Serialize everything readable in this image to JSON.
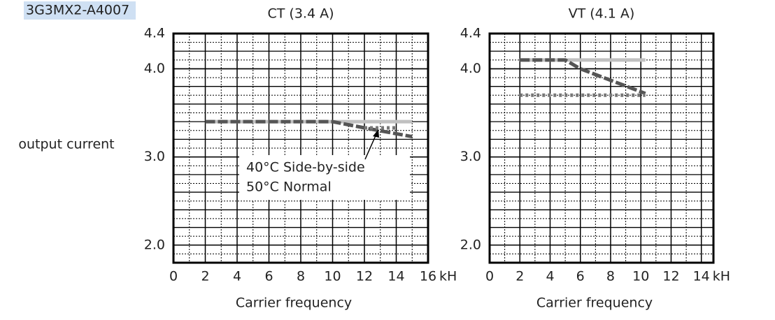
{
  "header": "3G3MX2-A4007",
  "ylabel": "output current",
  "chart_data": [
    {
      "type": "line",
      "title": "CT (3.4 A)",
      "xlabel": "Carrier frequency",
      "x_unit": "kH",
      "xlim": [
        0,
        16
      ],
      "xticks": [
        0,
        2,
        4,
        6,
        8,
        10,
        12,
        14,
        16
      ],
      "ylim": [
        1.8,
        4.4
      ],
      "yticks": [
        {
          "value": 2,
          "label": "2.0"
        },
        {
          "value": 3,
          "label": "3.0"
        },
        {
          "value": 4,
          "label": "4.0"
        },
        4.4
      ],
      "grid": true,
      "series": [
        {
          "color": "#c0c0c0",
          "style": "solid",
          "x": [
            2,
            15
          ],
          "values": [
            3.4,
            3.4
          ]
        },
        {
          "name": "40°C Side-by-side",
          "color": "#555555",
          "style": "dashed",
          "x": [
            2,
            10,
            12,
            15
          ],
          "values": [
            3.4,
            3.4,
            3.33,
            3.23
          ]
        },
        {
          "name": "50°C Normal",
          "color": "#777777",
          "style": "dotted",
          "x": [
            12,
            14
          ],
          "values": [
            3.33,
            3.33
          ]
        }
      ]
    },
    {
      "type": "line",
      "title": "VT (4.1 A)",
      "xlabel": "Carrier frequency",
      "x_unit": "kH",
      "xlim": [
        0,
        14.8
      ],
      "xticks": [
        0,
        2,
        4,
        6,
        8,
        10,
        12,
        14
      ],
      "ylim": [
        1.8,
        4.4
      ],
      "yticks": [
        {
          "value": 2,
          "label": "2.0"
        },
        {
          "value": 3,
          "label": "3.0"
        },
        {
          "value": 4,
          "label": "4.0"
        },
        4.4
      ],
      "grid": true,
      "series": [
        {
          "color": "#c0c0c0",
          "style": "solid",
          "x": [
            2,
            10.3
          ],
          "values": [
            4.1,
            4.1
          ]
        },
        {
          "color": "#555555",
          "style": "dashed",
          "x": [
            2,
            5,
            6,
            10.3
          ],
          "values": [
            4.1,
            4.1,
            4.0,
            3.72
          ]
        },
        {
          "color": "#777777",
          "style": "dotted",
          "x": [
            2,
            10.3
          ],
          "values": [
            3.7,
            3.7
          ]
        }
      ]
    }
  ]
}
